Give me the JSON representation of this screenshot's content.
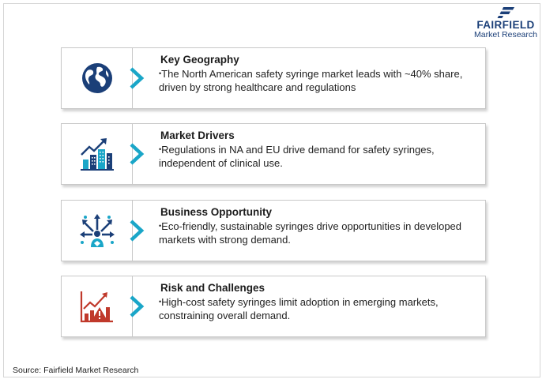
{
  "brand": {
    "name": "FAIRFIELD",
    "tagline": "Market Research",
    "color": "#1b3f78"
  },
  "accent": "#1aa6c8",
  "cards": [
    {
      "title": "Key Geography",
      "bullet": "•",
      "text": "The North American safety syringe market leads with ~40% share, driven by strong healthcare and regulations",
      "icon": "globe-icon"
    },
    {
      "title": "Market Drivers",
      "bullet": "•",
      "text": "Regulations in NA and EU drive demand for safety syringes, independent of clinical use.",
      "icon": "growth-buildings-icon"
    },
    {
      "title": "Business Opportunity",
      "bullet": "•",
      "text": "Eco-friendly, sustainable syringes drive opportunities in developed markets with strong demand.",
      "icon": "opportunity-arrows-icon"
    },
    {
      "title": "Risk and Challenges",
      "bullet": "•",
      "text": "High-cost safety syringes limit adoption in emerging markets, constraining overall demand.",
      "icon": "risk-chart-icon"
    }
  ],
  "source": "Source: Fairfield Market Research"
}
